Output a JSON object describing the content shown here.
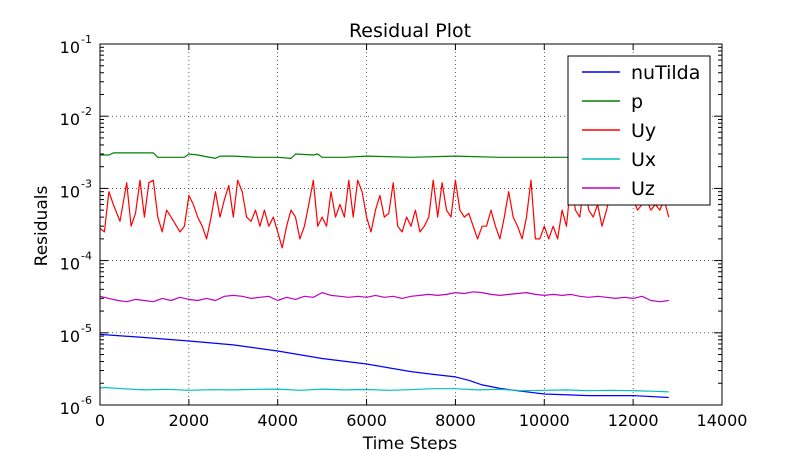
{
  "chart_data": {
    "type": "line",
    "title": "Residual Plot",
    "xlabel": "Time Steps",
    "ylabel": "Residuals",
    "xlim": [
      0,
      14000
    ],
    "ylim": [
      1e-06,
      0.1
    ],
    "yscale": "log",
    "grid": true,
    "legend_position": "top-right",
    "x_ticks": [
      "0",
      "2000",
      "4000",
      "6000",
      "8000",
      "10000",
      "12000",
      "14000"
    ],
    "y_ticks": [
      {
        "base": "10",
        "exp": "-6"
      },
      {
        "base": "10",
        "exp": "-5"
      },
      {
        "base": "10",
        "exp": "-4"
      },
      {
        "base": "10",
        "exp": "-3"
      },
      {
        "base": "10",
        "exp": "-2"
      },
      {
        "base": "10",
        "exp": "-1"
      }
    ],
    "series": [
      {
        "name": "nuTilda",
        "color": "#0000ff",
        "x": [
          0,
          1000,
          2000,
          3000,
          4000,
          5000,
          6000,
          7000,
          7500,
          8000,
          8300,
          8600,
          9000,
          9500,
          10000,
          11000,
          12000,
          12800
        ],
        "y": [
          9.5e-06,
          8.6e-06,
          7.7e-06,
          6.8e-06,
          5.6e-06,
          4.4e-06,
          3.7e-06,
          2.9e-06,
          2.65e-06,
          2.45e-06,
          2.2e-06,
          1.9e-06,
          1.7e-06,
          1.55e-06,
          1.42e-06,
          1.35e-06,
          1.35e-06,
          1.27e-06
        ]
      },
      {
        "name": "p",
        "color": "#008000",
        "x": [
          0,
          200,
          300,
          900,
          1200,
          1300,
          1900,
          2000,
          2200,
          2600,
          2700,
          3000,
          3500,
          4000,
          4300,
          4400,
          4800,
          4900,
          5000,
          5500,
          6000,
          7000,
          8000,
          9000,
          10000,
          11000,
          12000,
          12800
        ],
        "y": [
          0.0029,
          0.0029,
          0.0031,
          0.0031,
          0.0031,
          0.0027,
          0.0027,
          0.003,
          0.0029,
          0.0026,
          0.0028,
          0.0028,
          0.0027,
          0.0027,
          0.0026,
          0.003,
          0.0029,
          0.003,
          0.0027,
          0.0027,
          0.0028,
          0.0027,
          0.0028,
          0.0027,
          0.0027,
          0.0027,
          0.0028,
          0.0028
        ]
      },
      {
        "name": "Uy",
        "color": "#ff0000",
        "x": [
          0,
          100,
          200,
          300,
          450,
          600,
          700,
          800,
          900,
          1000,
          1100,
          1200,
          1300,
          1400,
          1500,
          1600,
          1800,
          1900,
          2000,
          2100,
          2200,
          2300,
          2400,
          2500,
          2600,
          2700,
          2800,
          2900,
          3000,
          3100,
          3200,
          3300,
          3400,
          3500,
          3600,
          3700,
          3800,
          3900,
          4000,
          4100,
          4200,
          4300,
          4400,
          4500,
          4600,
          4700,
          4800,
          4900,
          5000,
          5100,
          5200,
          5300,
          5400,
          5500,
          5600,
          5700,
          5800,
          5900,
          6000,
          6100,
          6200,
          6300,
          6400,
          6500,
          6600,
          6700,
          6800,
          6900,
          7000,
          7100,
          7200,
          7300,
          7400,
          7500,
          7600,
          7700,
          7800,
          7900,
          8000,
          8100,
          8200,
          8300,
          8400,
          8500,
          8600,
          8700,
          8800,
          8900,
          9000,
          9100,
          9200,
          9300,
          9400,
          9500,
          9600,
          9700,
          9800,
          9900,
          10000,
          10100,
          10200,
          10300,
          10400,
          10500,
          10600,
          10700,
          10800,
          10900,
          11000,
          11100,
          11200,
          11300,
          11400,
          11500,
          11600,
          11700,
          11800,
          11900,
          12000,
          12100,
          12200,
          12300,
          12400,
          12500,
          12600,
          12700,
          12800
        ],
        "y": [
          0.00028,
          0.00025,
          0.0009,
          0.0006,
          0.00035,
          0.0012,
          0.0003,
          0.00045,
          0.0013,
          0.0004,
          0.0012,
          0.0013,
          0.0004,
          0.00025,
          0.0005,
          0.0004,
          0.00025,
          0.0003,
          0.0008,
          0.0006,
          0.0004,
          0.0003,
          0.0002,
          0.0004,
          0.0009,
          0.0004,
          0.0007,
          0.0011,
          0.0004,
          0.0013,
          0.0009,
          0.0004,
          0.00035,
          0.0005,
          0.0003,
          0.0005,
          0.0003,
          0.0004,
          0.00025,
          0.00015,
          0.0003,
          0.0005,
          0.0004,
          0.0002,
          0.0003,
          0.0006,
          0.0013,
          0.0003,
          0.0004,
          0.0003,
          0.0009,
          0.0004,
          0.0006,
          0.0004,
          0.0013,
          0.0004,
          0.0013,
          0.0009,
          0.0004,
          0.00025,
          0.0005,
          0.0008,
          0.0004,
          0.00045,
          0.0012,
          0.0003,
          0.00025,
          0.0004,
          0.0003,
          0.0005,
          0.00025,
          0.0003,
          0.0004,
          0.0013,
          0.0004,
          0.0012,
          0.0005,
          0.0004,
          0.0013,
          0.0005,
          0.0004,
          0.00045,
          0.0003,
          0.0002,
          0.0003,
          0.0003,
          0.0005,
          0.0003,
          0.0002,
          0.0004,
          0.0009,
          0.0004,
          0.0003,
          0.0002,
          0.0004,
          0.0013,
          0.0002,
          0.0002,
          0.0003,
          0.0002,
          0.0003,
          0.0002,
          0.0005,
          0.0003,
          0.0013,
          0.0005,
          0.0004,
          0.0013,
          0.0005,
          0.0004,
          0.0006,
          0.0003,
          0.0005,
          0.0009,
          0.0006,
          0.0007,
          0.0008,
          0.0006,
          0.0007,
          0.0005,
          0.0006,
          0.0007,
          0.0005,
          0.0006,
          0.0005,
          0.0007,
          0.0004
        ]
      },
      {
        "name": "Ux",
        "color": "#00bfbf",
        "x": [
          0,
          100,
          500,
          1000,
          1500,
          2000,
          2500,
          3000,
          3500,
          4000,
          4500,
          5000,
          5500,
          6000,
          6500,
          7000,
          7500,
          8000,
          8500,
          9000,
          9500,
          10000,
          10500,
          11000,
          11500,
          12000,
          12500,
          12800
        ],
        "y": [
          1.72e-06,
          1.75e-06,
          1.68e-06,
          1.62e-06,
          1.65e-06,
          1.6e-06,
          1.63e-06,
          1.62e-06,
          1.65e-06,
          1.66e-06,
          1.6e-06,
          1.66e-06,
          1.62e-06,
          1.64e-06,
          1.6e-06,
          1.63e-06,
          1.68e-06,
          1.68e-06,
          1.62e-06,
          1.65e-06,
          1.58e-06,
          1.6e-06,
          1.62e-06,
          1.58e-06,
          1.6e-06,
          1.58e-06,
          1.55e-06,
          1.52e-06
        ]
      },
      {
        "name": "Uz",
        "color": "#bf00bf",
        "x": [
          0,
          200,
          400,
          600,
          800,
          1000,
          1200,
          1400,
          1600,
          1800,
          2000,
          2200,
          2400,
          2600,
          2800,
          3000,
          3200,
          3400,
          3600,
          3800,
          4000,
          4200,
          4400,
          4600,
          4800,
          5000,
          5200,
          5400,
          5600,
          5800,
          6000,
          6200,
          6400,
          6600,
          6800,
          7000,
          7200,
          7400,
          7600,
          7800,
          8000,
          8200,
          8400,
          8600,
          8800,
          9000,
          9200,
          9400,
          9600,
          9800,
          10000,
          10200,
          10400,
          10600,
          10800,
          11000,
          11200,
          11400,
          11600,
          11800,
          12000,
          12200,
          12400,
          12600,
          12800
        ],
        "y": [
          3.2e-05,
          3e-05,
          2.8e-05,
          2.7e-05,
          2.9e-05,
          2.8e-05,
          2.7e-05,
          3e-05,
          2.8e-05,
          3.1e-05,
          2.9e-05,
          2.8e-05,
          3e-05,
          2.8e-05,
          3.2e-05,
          3.3e-05,
          3.2e-05,
          3e-05,
          3.1e-05,
          3.2e-05,
          2.8e-05,
          3.1e-05,
          2.9e-05,
          3.2e-05,
          3.1e-05,
          3.6e-05,
          3.3e-05,
          3.2e-05,
          3.1e-05,
          3.2e-05,
          3.1e-05,
          3.3e-05,
          3.1e-05,
          3.2e-05,
          3e-05,
          3.2e-05,
          3.3e-05,
          3.4e-05,
          3.3e-05,
          3.4e-05,
          3.6e-05,
          3.5e-05,
          3.7e-05,
          3.6e-05,
          3.4e-05,
          3.3e-05,
          3.4e-05,
          3.5e-05,
          3.6e-05,
          3.4e-05,
          3.3e-05,
          3.4e-05,
          3.3e-05,
          3.4e-05,
          3.2e-05,
          3.1e-05,
          3.2e-05,
          3.1e-05,
          3e-05,
          3.1e-05,
          3e-05,
          3.2e-05,
          2.8e-05,
          2.7e-05,
          2.8e-05
        ]
      }
    ]
  }
}
